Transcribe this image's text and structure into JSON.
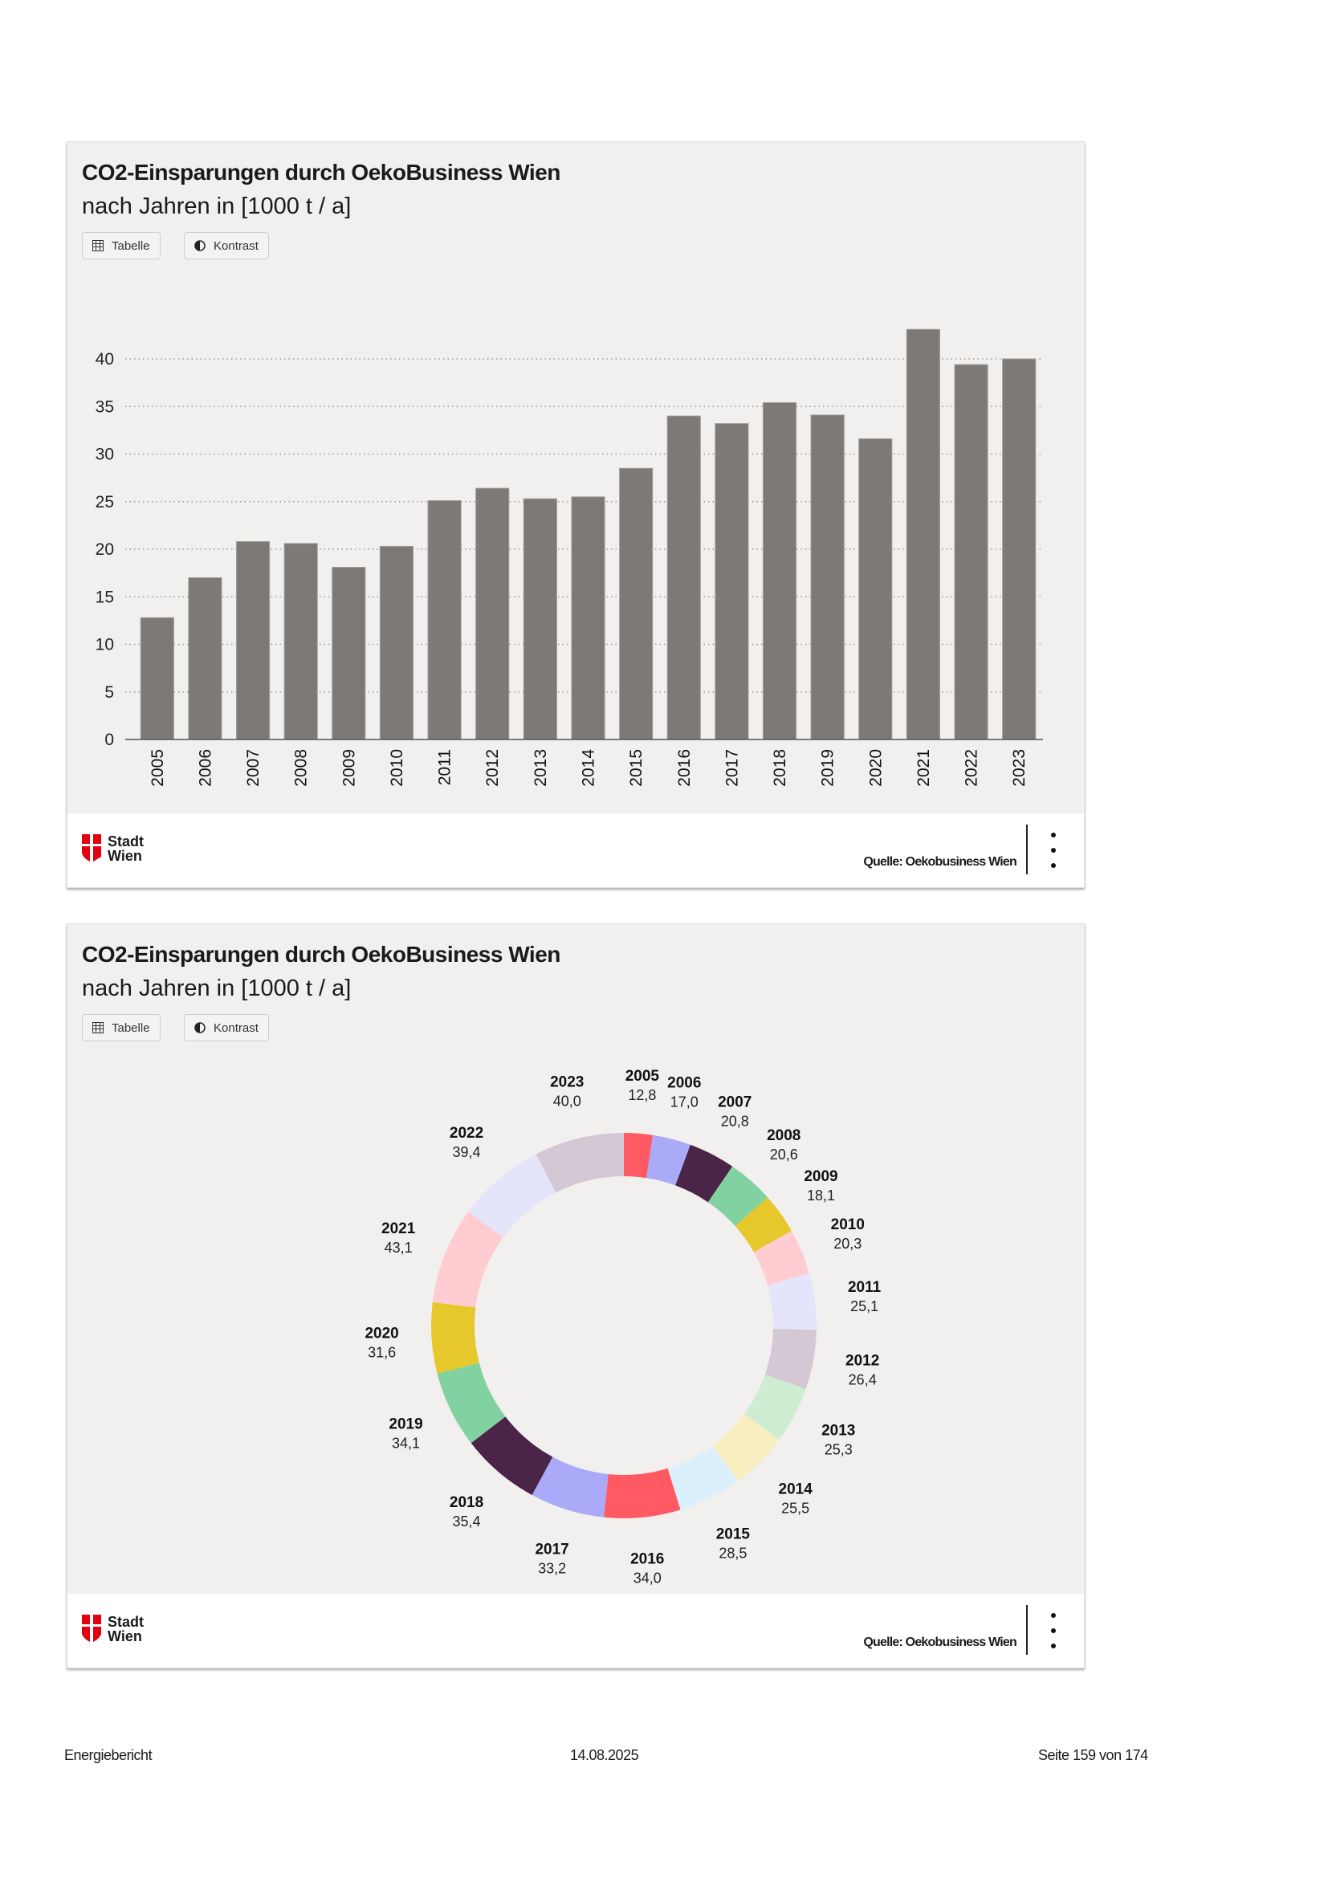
{
  "charts": [
    {
      "title": "CO2-Einsparungen durch OekoBusiness Wien",
      "subtitle": "nach Jahren in [1000 t / a]",
      "buttons": {
        "table": "Tabelle",
        "contrast": "Kontrast"
      },
      "logo": {
        "line1": "Stadt",
        "line2": "Wien"
      },
      "source": "Quelle: Oekobusiness Wien"
    },
    {
      "title": "CO2-Einsparungen durch OekoBusiness Wien",
      "subtitle": "nach Jahren in [1000 t / a]",
      "buttons": {
        "table": "Tabelle",
        "contrast": "Kontrast"
      },
      "logo": {
        "line1": "Stadt",
        "line2": "Wien"
      },
      "source": "Quelle: Oekobusiness Wien"
    }
  ],
  "chart_data": [
    {
      "type": "bar",
      "title": "CO2-Einsparungen durch OekoBusiness Wien",
      "subtitle": "nach Jahren in [1000 t / a]",
      "categories": [
        "2005",
        "2006",
        "2007",
        "2008",
        "2009",
        "2010",
        "2011",
        "2012",
        "2013",
        "2014",
        "2015",
        "2016",
        "2017",
        "2018",
        "2019",
        "2020",
        "2021",
        "2022",
        "2023"
      ],
      "values": [
        12.8,
        17.0,
        20.8,
        20.6,
        18.1,
        20.3,
        25.1,
        26.4,
        25.3,
        25.5,
        28.5,
        34.0,
        33.2,
        35.4,
        34.1,
        31.6,
        43.1,
        39.4,
        40.0
      ],
      "yticks": [
        0,
        5,
        10,
        15,
        20,
        25,
        30,
        35,
        40
      ],
      "ylim": [
        0,
        45
      ],
      "xlabel": "",
      "ylabel": "",
      "grid": "horizontal dotted",
      "bar_color": "#7d7976"
    },
    {
      "type": "pie",
      "donut": true,
      "title": "CO2-Einsparungen durch OekoBusiness Wien",
      "subtitle": "nach Jahren in [1000 t / a]",
      "categories": [
        "2005",
        "2006",
        "2007",
        "2008",
        "2009",
        "2010",
        "2011",
        "2012",
        "2013",
        "2014",
        "2015",
        "2016",
        "2017",
        "2018",
        "2019",
        "2020",
        "2021",
        "2022",
        "2023"
      ],
      "values": [
        12.8,
        17.0,
        20.8,
        20.6,
        18.1,
        20.3,
        25.1,
        26.4,
        25.3,
        25.5,
        28.5,
        34.0,
        33.2,
        35.4,
        34.1,
        31.6,
        43.1,
        39.4,
        40.0
      ],
      "value_labels": [
        "12,8",
        "17,0",
        "20,8",
        "20,6",
        "18,1",
        "20,3",
        "25,1",
        "26,4",
        "25,3",
        "25,5",
        "28,5",
        "34,0",
        "33,2",
        "35,4",
        "34,1",
        "31,6",
        "43,1",
        "39,4",
        "40,0"
      ],
      "colors": [
        "#ff5a64",
        "#aaaaf8",
        "#4a2548",
        "#82d1a0",
        "#e6c72c",
        "#ffcdd1",
        "#e4e4fa",
        "#d4c8d4",
        "#cdecd2",
        "#f8eec0",
        "#dcf0fc",
        "#ff5a64",
        "#aaaaf8",
        "#4a2548",
        "#82d1a0",
        "#e6c72c",
        "#ffcdd1",
        "#e4e4fa",
        "#d4c8d4"
      ]
    }
  ],
  "page_footer": {
    "left": "Energiebericht",
    "center": "14.08.2025",
    "right": "Seite 159 von 174"
  }
}
